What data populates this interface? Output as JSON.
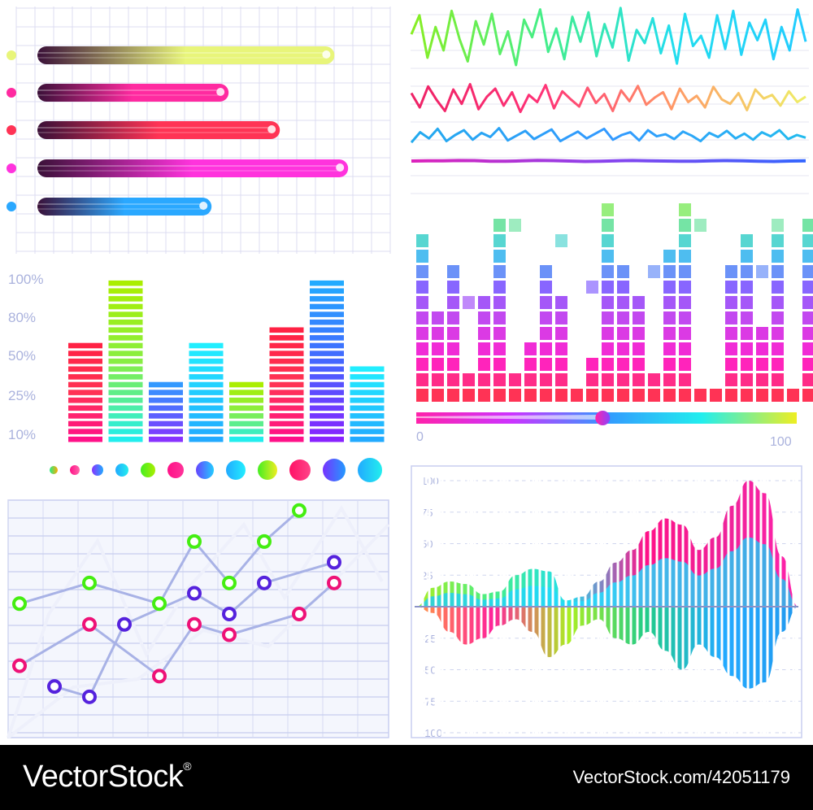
{
  "chart_data": [
    {
      "type": "bar",
      "orientation": "horizontal",
      "series": [
        {
          "values": [
            87,
            56,
            71,
            91,
            51
          ],
          "colors": [
            "#e8f57a",
            "#ff2aa0",
            "#ff3355",
            "#ff33dd",
            "#2aa8ff"
          ]
        }
      ]
    },
    {
      "type": "line",
      "series": [
        {
          "values": [
            62,
            88,
            30,
            72,
            40,
            94,
            55,
            25,
            80,
            48,
            90,
            35,
            66,
            20,
            82,
            58,
            96,
            38,
            70,
            28,
            86,
            52,
            92,
            32,
            76,
            44,
            98,
            26,
            68,
            50,
            84,
            36,
            74,
            22,
            90,
            46,
            60,
            30,
            88,
            42,
            94,
            34,
            78,
            54,
            82,
            28,
            72,
            40,
            96,
            52
          ]
        },
        {
          "values": [
            70,
            38,
            85,
            55,
            30,
            78,
            46,
            90,
            34,
            62,
            80,
            42,
            72,
            28,
            66,
            50,
            88,
            36,
            74,
            56,
            40,
            82,
            48,
            68,
            30,
            76,
            52,
            86,
            44,
            60,
            72,
            34,
            80,
            50,
            64,
            38,
            84,
            56,
            46,
            70,
            32,
            78,
            58,
            66,
            42,
            74,
            50,
            62
          ]
        },
        {
          "values": [
            40,
            70,
            52,
            80,
            44,
            62,
            76,
            48,
            68,
            56,
            82,
            46,
            60,
            74,
            50,
            64,
            78,
            44,
            58,
            72,
            52,
            66,
            80,
            48,
            62,
            70,
            46,
            76,
            58,
            64,
            50,
            72,
            60,
            44,
            68,
            56,
            74,
            52,
            66,
            48,
            70,
            58,
            76,
            50,
            62,
            54
          ]
        },
        {
          "values": [
            50,
            52,
            51,
            54,
            53,
            49,
            48,
            51,
            55,
            53,
            50,
            47,
            49,
            52,
            54,
            51,
            50,
            48,
            49,
            52,
            53,
            51,
            49,
            47,
            50,
            52
          ]
        }
      ]
    },
    {
      "type": "bar",
      "yticks": [
        "100%",
        "80%",
        "50%",
        "25%",
        "10%"
      ],
      "values": [
        62,
        100,
        37,
        62,
        37,
        68,
        100,
        49
      ]
    },
    {
      "type": "bar",
      "slider_min": "0",
      "slider_max": "100",
      "slider_value": 49,
      "values": [
        11,
        6,
        9,
        2,
        7,
        12,
        2,
        4,
        9,
        7,
        1,
        3,
        14,
        9,
        7,
        2,
        10,
        15,
        1,
        1,
        9,
        11,
        5,
        11,
        1,
        12,
        8,
        15,
        7,
        8
      ],
      "peaks": [
        13,
        17,
        14,
        6,
        14,
        15,
        11,
        14,
        18,
        10,
        13,
        7,
        16,
        17,
        13,
        8,
        18,
        15,
        11,
        15,
        6,
        13,
        8,
        11,
        13,
        13,
        16,
        21,
        15,
        14
      ]
    },
    {
      "type": "scatter",
      "series": [
        {
          "name": "green",
          "color": "#44ee11",
          "points": [
            [
              1,
              6
            ],
            [
              3,
              7
            ],
            [
              5,
              6
            ],
            [
              6,
              9
            ],
            [
              7,
              7
            ],
            [
              8,
              9
            ],
            [
              9,
              10.5
            ]
          ]
        },
        {
          "name": "pink",
          "color": "#ee1177",
          "points": [
            [
              1,
              3
            ],
            [
              3,
              5
            ],
            [
              5,
              2.5
            ],
            [
              6,
              5
            ],
            [
              7,
              4.5
            ],
            [
              9,
              5.5
            ],
            [
              10,
              7
            ]
          ]
        },
        {
          "name": "violet",
          "color": "#5522dd",
          "points": [
            [
              2,
              2
            ],
            [
              3,
              1.5
            ],
            [
              4,
              5
            ],
            [
              6,
              6.5
            ],
            [
              7,
              5.5
            ],
            [
              8,
              7
            ],
            [
              10,
              8
            ]
          ]
        }
      ]
    },
    {
      "type": "area",
      "yticks": [
        "100",
        "75",
        "50",
        "25",
        "-25",
        "-50",
        "-75",
        "-100"
      ],
      "ylim": [
        -100,
        100
      ],
      "series": [
        {
          "values": [
            0,
            15,
            20,
            18,
            10,
            12,
            25,
            30,
            28,
            5,
            8,
            20,
            35,
            45,
            60,
            70,
            65,
            45,
            55,
            80,
            100,
            90,
            40,
            0
          ]
        },
        {
          "values": [
            0,
            -5,
            -20,
            -30,
            -25,
            -15,
            -10,
            -20,
            -40,
            -30,
            -15,
            -10,
            -25,
            -30,
            -20,
            -35,
            -50,
            -30,
            -40,
            -55,
            -65,
            -60,
            -20,
            0
          ]
        }
      ]
    }
  ],
  "footer": {
    "brand": "VectorStock",
    "trademark": "®",
    "image_id": "VectorStock.com/42051179"
  }
}
